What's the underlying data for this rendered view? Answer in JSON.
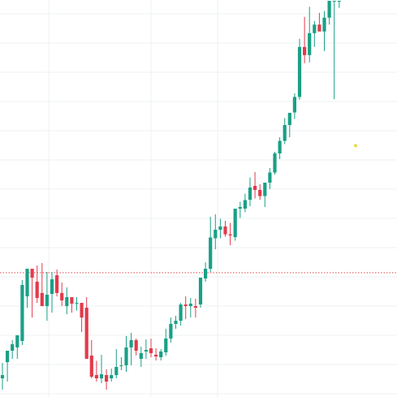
{
  "chart_data": {
    "type": "candlestick",
    "y_range": [
      0,
      1000
    ],
    "grid": true,
    "reference_line": {
      "value": 313.2,
      "style": "dotted",
      "color": "#e04a4a"
    },
    "marker": {
      "index": 70,
      "value": 633.2,
      "color": "#e8d84a"
    },
    "up_color": "#1aa086",
    "down_color": "#e23b4c",
    "candles": [
      {
        "o": 47.0,
        "h": 85.9,
        "l": 18.4,
        "c": 55.2
      },
      {
        "o": 87.9,
        "h": 116.6,
        "l": 38.9,
        "c": 116.6
      },
      {
        "o": 116.6,
        "h": 143.2,
        "l": 96.1,
        "c": 133.0
      },
      {
        "o": 124.8,
        "h": 155.5,
        "l": 96.1,
        "c": 155.5
      },
      {
        "o": 141.1,
        "h": 294.5,
        "l": 130.9,
        "c": 282.2
      },
      {
        "o": 253.5,
        "h": 323.1,
        "l": 224.8,
        "c": 323.1
      },
      {
        "o": 323.1,
        "h": 323.1,
        "l": 200.2,
        "c": 300.6
      },
      {
        "o": 290.4,
        "h": 331.3,
        "l": 237.1,
        "c": 249.4
      },
      {
        "o": 262.0,
        "h": 337.4,
        "l": 229.0,
        "c": 229.0
      },
      {
        "o": 229.0,
        "h": 315.0,
        "l": 192.0,
        "c": 257.6
      },
      {
        "o": 259.6,
        "h": 315.0,
        "l": 212.5,
        "c": 296.5
      },
      {
        "o": 306.7,
        "h": 321.0,
        "l": 253.5,
        "c": 262.0
      },
      {
        "o": 262.0,
        "h": 288.3,
        "l": 229.0,
        "c": 243.3
      },
      {
        "o": 229.0,
        "h": 276.1,
        "l": 208.4,
        "c": 251.5
      },
      {
        "o": 251.5,
        "h": 251.5,
        "l": 212.5,
        "c": 235.1
      },
      {
        "o": 235.1,
        "h": 251.5,
        "l": 217.8,
        "c": 237.1
      },
      {
        "o": 237.1,
        "h": 237.1,
        "l": 163.8,
        "c": 200.2
      },
      {
        "o": 225.0,
        "h": 251.5,
        "l": 96.1,
        "c": 96.1
      },
      {
        "o": 104.3,
        "h": 143.2,
        "l": 47.0,
        "c": 51.1
      },
      {
        "o": 55.2,
        "h": 91.1,
        "l": 38.9,
        "c": 47.0
      },
      {
        "o": 47.0,
        "h": 106.4,
        "l": 34.8,
        "c": 57.3
      },
      {
        "o": 55.2,
        "h": 69.5,
        "l": 18.4,
        "c": 38.9
      },
      {
        "o": 47.0,
        "h": 71.6,
        "l": 38.9,
        "c": 55.2
      },
      {
        "o": 55.2,
        "h": 120.7,
        "l": 47.0,
        "c": 75.7
      },
      {
        "o": 79.8,
        "h": 100.2,
        "l": 67.5,
        "c": 79.8
      },
      {
        "o": 79.8,
        "h": 153.4,
        "l": 63.4,
        "c": 124.8
      },
      {
        "o": 124.8,
        "h": 161.7,
        "l": 79.8,
        "c": 143.2
      },
      {
        "o": 143.2,
        "h": 147.3,
        "l": 104.3,
        "c": 116.6
      },
      {
        "o": 96.1,
        "h": 126.8,
        "l": 75.7,
        "c": 110.5
      },
      {
        "o": 114.6,
        "h": 145.3,
        "l": 96.1,
        "c": 118.6
      },
      {
        "o": 122.7,
        "h": 147.3,
        "l": 100.2,
        "c": 110.5
      },
      {
        "o": 106.4,
        "h": 122.7,
        "l": 92.0,
        "c": 102.2
      },
      {
        "o": 100.2,
        "h": 120.7,
        "l": 92.0,
        "c": 114.6
      },
      {
        "o": 112.5,
        "h": 171.9,
        "l": 104.3,
        "c": 147.3
      },
      {
        "o": 147.3,
        "h": 200.2,
        "l": 137.0,
        "c": 184.2
      },
      {
        "o": 184.2,
        "h": 204.3,
        "l": 171.9,
        "c": 192.0
      },
      {
        "o": 192.0,
        "h": 237.1,
        "l": 180.1,
        "c": 233.0
      },
      {
        "o": 233.0,
        "h": 253.5,
        "l": 196.1,
        "c": 229.0
      },
      {
        "o": 229.0,
        "h": 249.4,
        "l": 200.2,
        "c": 235.1
      },
      {
        "o": 229.0,
        "h": 247.4,
        "l": 200.2,
        "c": 225.0
      },
      {
        "o": 233.0,
        "h": 300.6,
        "l": 225.0,
        "c": 300.6
      },
      {
        "o": 298.5,
        "h": 339.5,
        "l": 290.4,
        "c": 323.1
      },
      {
        "o": 323.1,
        "h": 454.0,
        "l": 315.0,
        "c": 401.8
      },
      {
        "o": 399.8,
        "h": 460.2,
        "l": 372.0,
        "c": 421.3
      },
      {
        "o": 421.3,
        "h": 448.9,
        "l": 399.8,
        "c": 429.5
      },
      {
        "o": 429.5,
        "h": 443.8,
        "l": 403.9,
        "c": 409.8
      },
      {
        "o": 409.8,
        "h": 438.7,
        "l": 382.3,
        "c": 406.9
      },
      {
        "o": 402.8,
        "h": 472.4,
        "l": 393.6,
        "c": 474.4
      },
      {
        "o": 474.4,
        "h": 491.8,
        "l": 450.9,
        "c": 478.5
      },
      {
        "o": 474.4,
        "h": 512.3,
        "l": 465.3,
        "c": 495.9
      },
      {
        "o": 496.9,
        "h": 553.2,
        "l": 480.5,
        "c": 527.6
      },
      {
        "o": 531.7,
        "h": 566.5,
        "l": 500.0,
        "c": 521.5
      },
      {
        "o": 521.5,
        "h": 535.8,
        "l": 496.9,
        "c": 506.1
      },
      {
        "o": 506.1,
        "h": 536.9,
        "l": 478.5,
        "c": 539.9
      },
      {
        "o": 539.9,
        "h": 576.7,
        "l": 523.5,
        "c": 565.5
      },
      {
        "o": 565.5,
        "h": 617.6,
        "l": 560.3,
        "c": 613.5
      },
      {
        "o": 613.5,
        "h": 654.4,
        "l": 599.2,
        "c": 645.2
      },
      {
        "o": 645.2,
        "h": 702.5,
        "l": 637.0,
        "c": 685.1
      },
      {
        "o": 685.1,
        "h": 715.8,
        "l": 654.4,
        "c": 715.8
      },
      {
        "o": 716.8,
        "h": 765.0,
        "l": 700.5,
        "c": 755.8
      },
      {
        "o": 755.8,
        "h": 902.2,
        "l": 748.6,
        "c": 881.7
      },
      {
        "o": 881.7,
        "h": 957.5,
        "l": 840.8,
        "c": 861.2
      },
      {
        "o": 861.2,
        "h": 983.0,
        "l": 842.8,
        "c": 916.5
      },
      {
        "o": 916.5,
        "h": 947.2,
        "l": 881.7,
        "c": 938.0
      },
      {
        "o": 938.0,
        "h": 967.7,
        "l": 922.7,
        "c": 920.6
      },
      {
        "o": 920.6,
        "h": 971.8,
        "l": 871.4,
        "c": 955.5
      },
      {
        "o": 955.5,
        "h": 996.4,
        "l": 938.0,
        "c": 998.0
      },
      {
        "o": 998.0,
        "h": 998.0,
        "l": 750.0,
        "c": 998.0
      },
      {
        "o": 998.0,
        "h": 998.0,
        "l": 980.0,
        "c": 998.0
      }
    ]
  }
}
